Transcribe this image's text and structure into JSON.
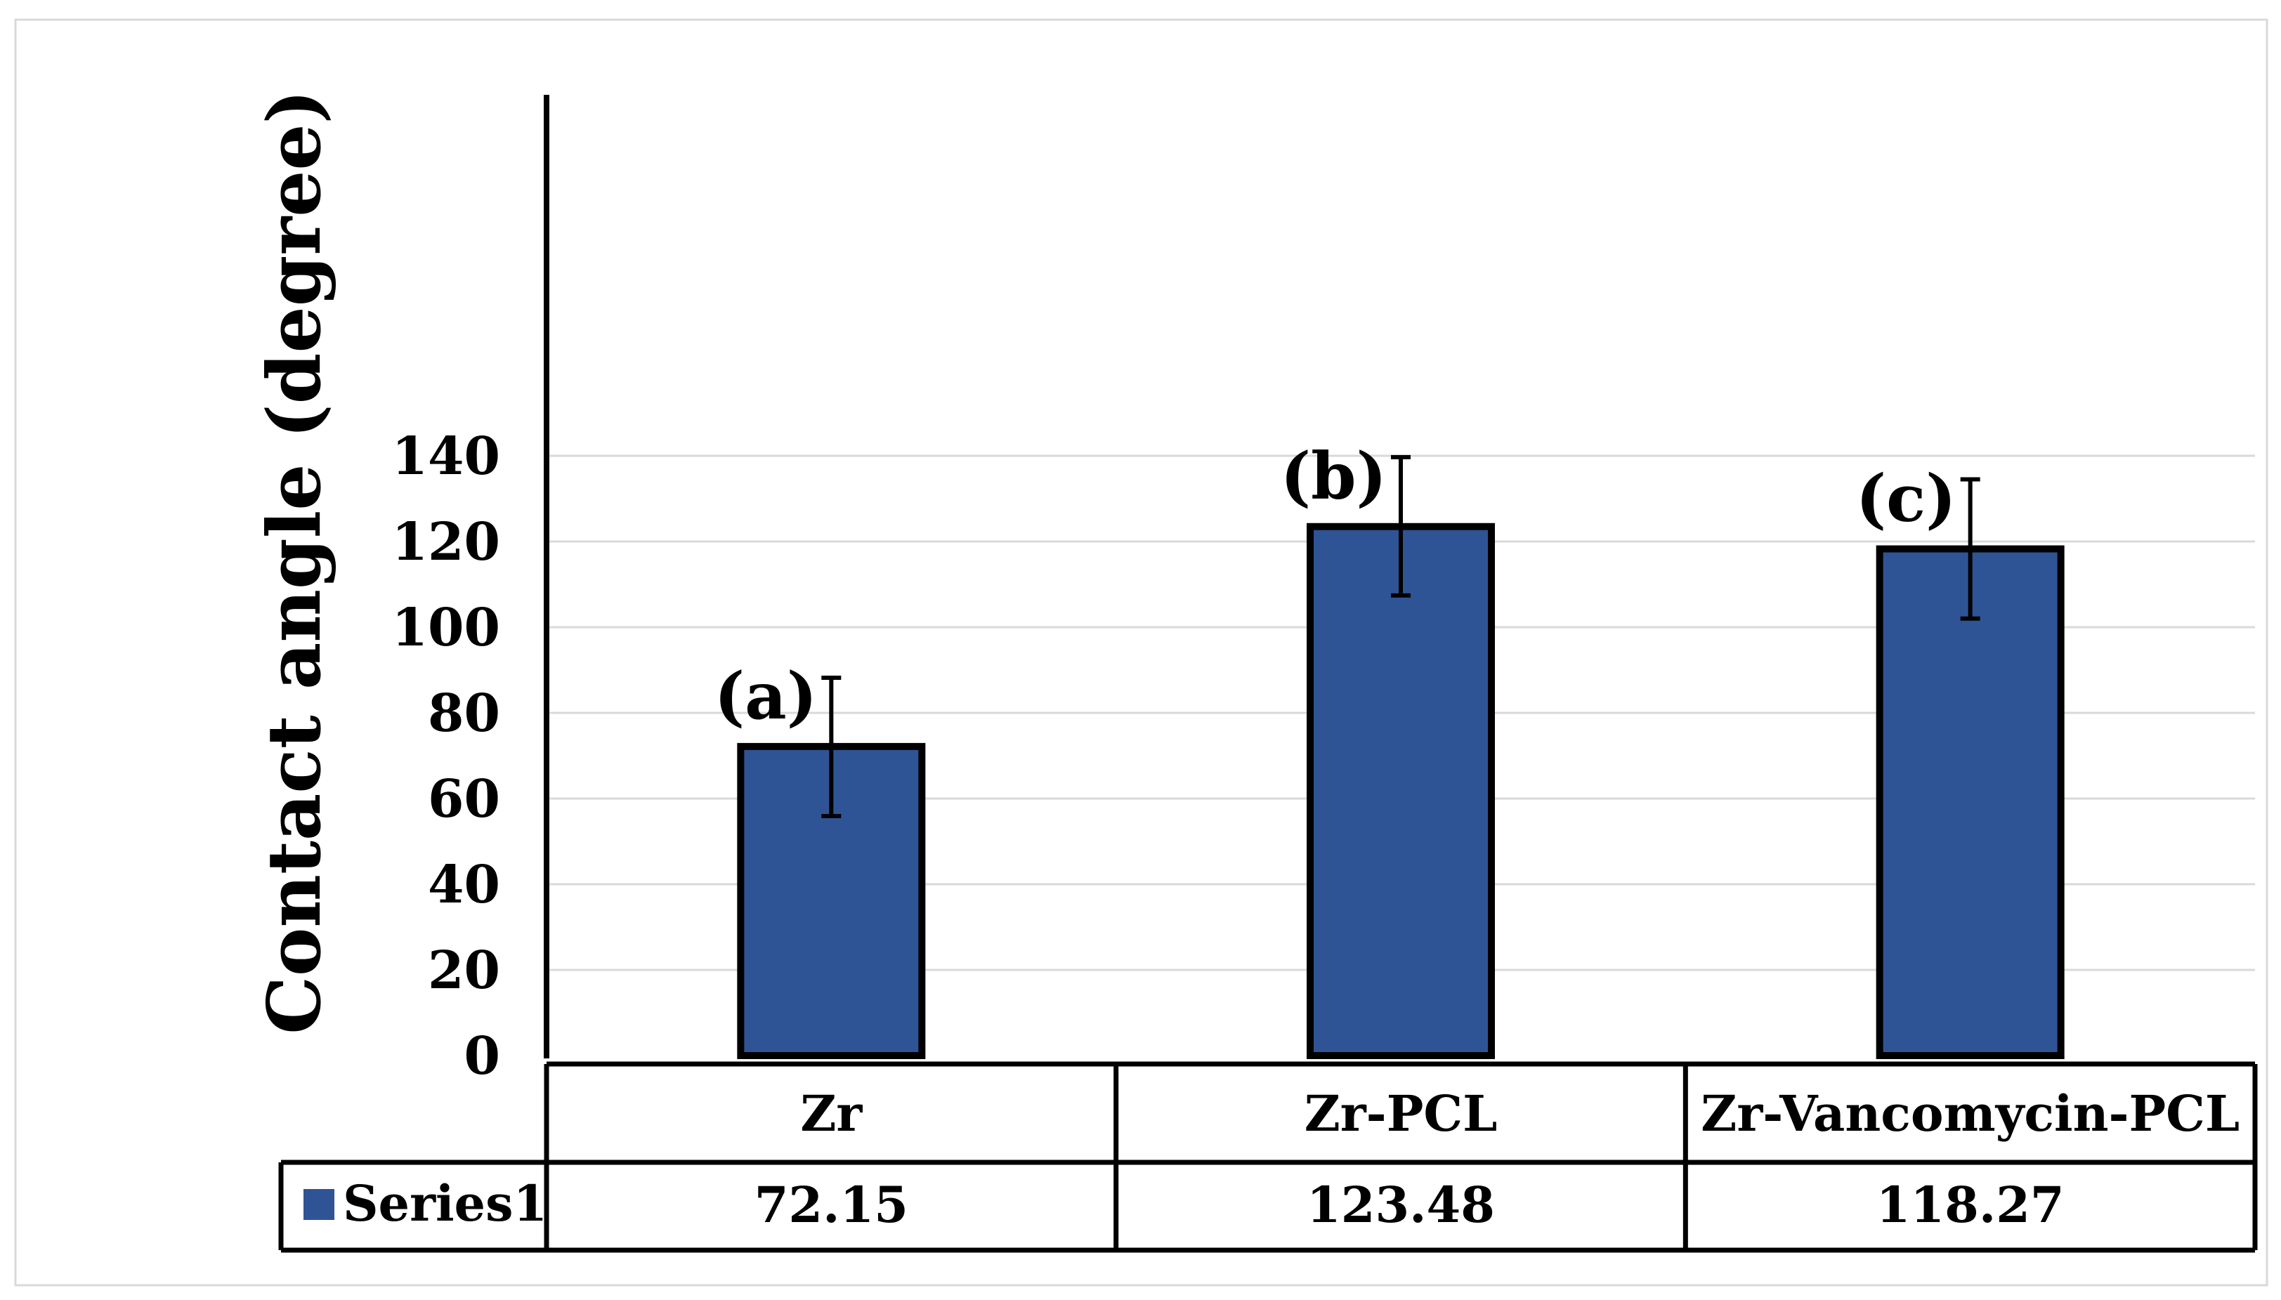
{
  "chart_data": {
    "type": "bar",
    "title": "",
    "xlabel": "",
    "ylabel": "Contact angle (degree)",
    "ylim": [
      0,
      150
    ],
    "yticks": [
      0,
      20,
      40,
      60,
      80,
      100,
      120,
      140
    ],
    "categories": [
      "Zr",
      "Zr-PCL",
      "Zr-Vancomycin-PCL"
    ],
    "series": [
      {
        "name": "Series1",
        "values": [
          72.15,
          123.48,
          118.27
        ],
        "error_high": [
          88.2,
          139.7,
          134.5
        ],
        "error_low": [
          55.9,
          107.4,
          102.0
        ],
        "color": "#2e5496"
      }
    ],
    "bar_annotations": [
      "(a)",
      "(b)",
      "(c)"
    ],
    "data_table": {
      "legend_entry": "Series1",
      "values_text": [
        "72.15",
        "123.48",
        "118.27"
      ]
    },
    "grid": true,
    "legend": "data-table"
  }
}
